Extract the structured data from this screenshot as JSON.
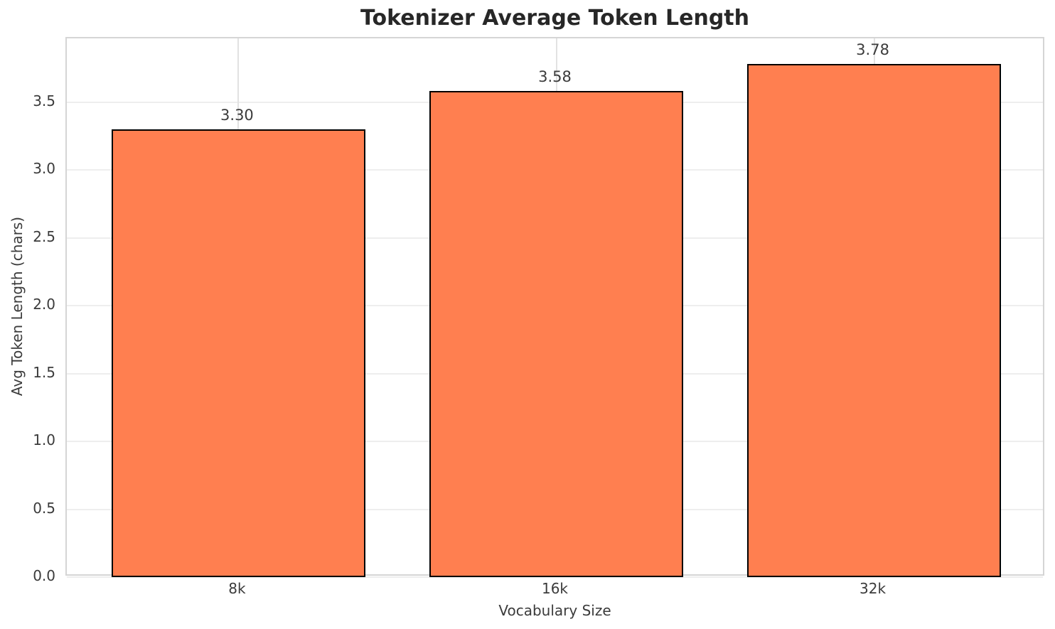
{
  "chart_data": {
    "type": "bar",
    "title": "Tokenizer Average Token Length",
    "xlabel": "Vocabulary Size",
    "ylabel": "Avg Token Length (chars)",
    "categories": [
      "8k",
      "16k",
      "32k"
    ],
    "values": [
      3.3,
      3.58,
      3.78
    ],
    "value_labels": [
      "3.30",
      "3.58",
      "3.78"
    ],
    "ytick_values": [
      0.0,
      0.5,
      1.0,
      1.5,
      2.0,
      2.5,
      3.0,
      3.5
    ],
    "ytick_labels": [
      "0.0",
      "0.5",
      "1.0",
      "1.5",
      "2.0",
      "2.5",
      "3.0",
      "3.5"
    ],
    "ylim": [
      0,
      3.97
    ],
    "bar_width_fraction": 0.8,
    "grid": true,
    "legend_position": "none",
    "colors": {
      "bar_fill": "#FF7F50",
      "bar_edge": "#000000",
      "grid_horizontal": "#eeeeee",
      "grid_vertical": "#e2e2e2",
      "spine": "#d5d5d5",
      "title_text": "#272727",
      "label_text": "#3b3b3b",
      "background": "#ffffff"
    }
  }
}
